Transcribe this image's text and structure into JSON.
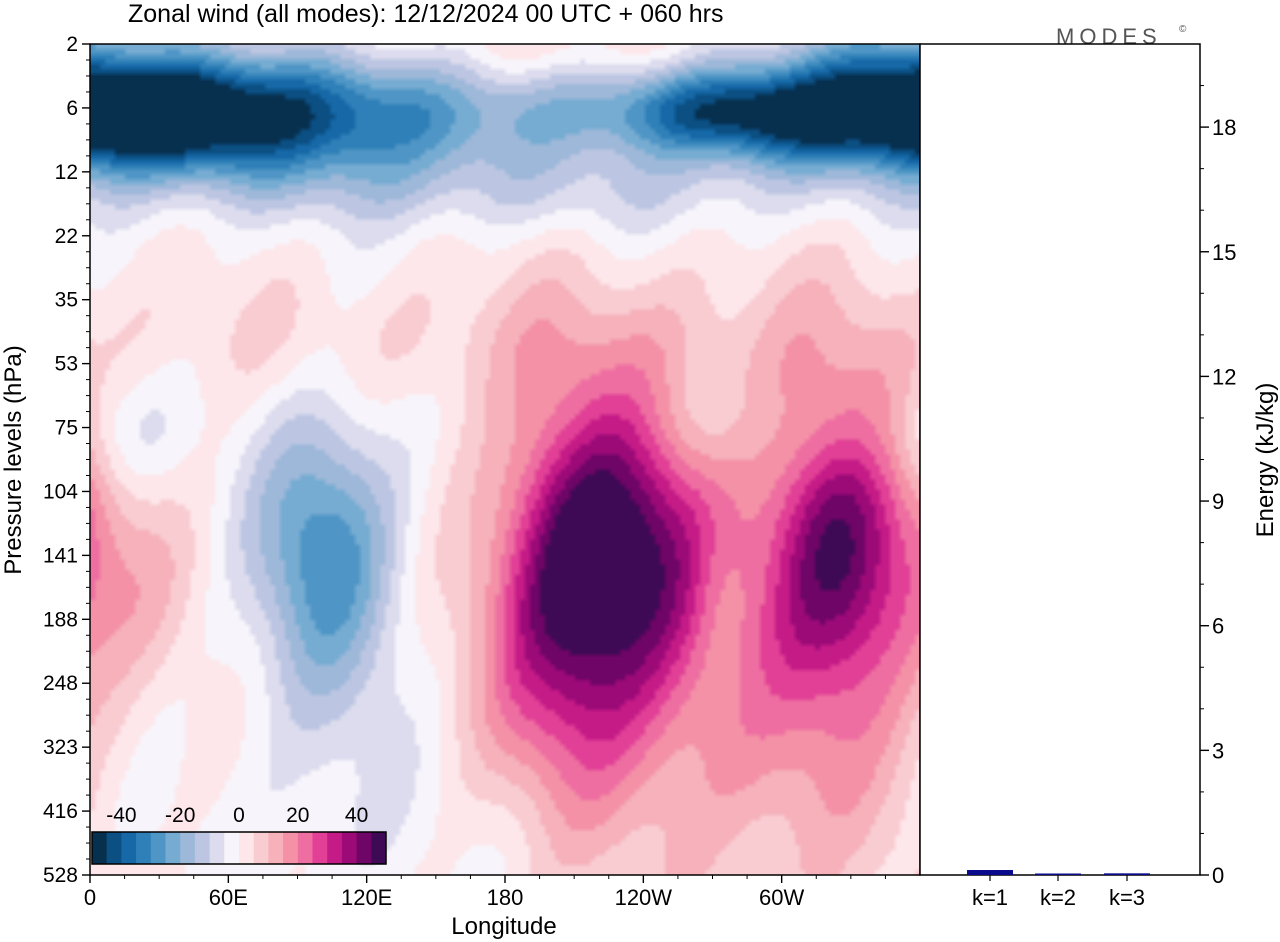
{
  "title": "Zonal wind (all modes):  12/12/2024  00 UTC  + 060 hrs",
  "brand": "MODES",
  "brand_mark": "©",
  "chart_data": [
    {
      "type": "heatmap",
      "name": "zonal-wind-cross-section",
      "xlabel": "Longitude",
      "ylabel": "Pressure levels (hPa)",
      "x_ticks": [
        {
          "lon": 0,
          "label": "0"
        },
        {
          "lon": 60,
          "label": "60E"
        },
        {
          "lon": 120,
          "label": "120E"
        },
        {
          "lon": 180,
          "label": "180"
        },
        {
          "lon": 240,
          "label": "120W"
        },
        {
          "lon": 300,
          "label": "60W"
        }
      ],
      "xlim": [
        0,
        360
      ],
      "y_ticks": [
        "2",
        "6",
        "12",
        "22",
        "35",
        "53",
        "75",
        "104",
        "141",
        "188",
        "248",
        "323",
        "416",
        "528"
      ],
      "y_scale": "categorical-levels",
      "colorbar": {
        "labels": [
          "-40",
          "-20",
          "0",
          "20",
          "40"
        ],
        "values": [
          -40,
          -20,
          0,
          20,
          40
        ],
        "levels": [
          -45,
          -40,
          -35,
          -30,
          -25,
          -20,
          -15,
          -10,
          -5,
          0,
          5,
          10,
          15,
          20,
          25,
          30,
          35,
          40,
          45
        ],
        "colors": [
          "#07304f",
          "#0b4f83",
          "#1668a7",
          "#2f80b8",
          "#4f96c6",
          "#76acd2",
          "#9db8d9",
          "#bcc6e2",
          "#dcdcee",
          "#f7f5fb",
          "#fde7ea",
          "#f9ccd2",
          "#f6b1bb",
          "#f491a7",
          "#ee6ea1",
          "#e14096",
          "#c51b87",
          "#9c0a78",
          "#6e0567",
          "#3f0a55"
        ]
      },
      "blobs": [
        {
          "lon": 27,
          "level": 1.0,
          "sx": 30,
          "sy": 0.55,
          "v": -36
        },
        {
          "lon": 80,
          "level": 0.9,
          "sx": 45,
          "sy": 0.6,
          "v": -28
        },
        {
          "lon": 50,
          "level": 1.6,
          "sx": 60,
          "sy": 0.5,
          "v": -15
        },
        {
          "lon": 155,
          "level": 1.1,
          "sx": 45,
          "sy": 0.7,
          "v": -18
        },
        {
          "lon": 190,
          "level": 0.0,
          "sx": 35,
          "sy": 0.5,
          "v": 8
        },
        {
          "lon": 270,
          "level": 1.0,
          "sx": 40,
          "sy": 0.5,
          "v": -28
        },
        {
          "lon": 320,
          "level": 1.1,
          "sx": 45,
          "sy": 0.55,
          "v": -34
        },
        {
          "lon": 350,
          "level": 0.3,
          "sx": 30,
          "sy": 0.6,
          "v": -20
        },
        {
          "lon": 180,
          "level": 2.3,
          "sx": 160,
          "sy": 0.5,
          "v": -8
        },
        {
          "lon": 100,
          "level": 7.8,
          "sx": 20,
          "sy": 1.4,
          "v": -22
        },
        {
          "lon": 110,
          "level": 9.0,
          "sx": 30,
          "sy": 2.5,
          "v": -10
        },
        {
          "lon": 15,
          "level": 6.0,
          "sx": 15,
          "sy": 0.7,
          "v": -7
        },
        {
          "lon": 5,
          "level": 8.3,
          "sx": 30,
          "sy": 1.2,
          "v": 10
        },
        {
          "lon": 205,
          "level": 8.5,
          "sx": 22,
          "sy": 2.0,
          "v": 26
        },
        {
          "lon": 235,
          "level": 8.0,
          "sx": 25,
          "sy": 1.6,
          "v": 34
        },
        {
          "lon": 325,
          "level": 7.8,
          "sx": 22,
          "sy": 1.7,
          "v": 33
        },
        {
          "lon": 220,
          "level": 9.5,
          "sx": 55,
          "sy": 3.0,
          "v": 12
        },
        {
          "lon": 318,
          "level": 10.0,
          "sx": 35,
          "sy": 3.5,
          "v": 10
        },
        {
          "lon": 185,
          "level": 4.6,
          "sx": 180,
          "sy": 0.8,
          "v": 6
        },
        {
          "lon": 270,
          "level": 6.0,
          "sx": 18,
          "sy": 0.6,
          "v": -4
        },
        {
          "lon": 272,
          "level": 8.6,
          "sx": 8,
          "sy": 0.8,
          "v": -4
        },
        {
          "lon": 340,
          "level": 6.2,
          "sx": 22,
          "sy": 0.6,
          "v": -4
        },
        {
          "lon": 265,
          "level": 11.5,
          "sx": 40,
          "sy": 1.5,
          "v": 5
        },
        {
          "lon": 180,
          "level": 12.5,
          "sx": 80,
          "sy": 1.0,
          "v": -3
        }
      ]
    },
    {
      "type": "bar",
      "name": "mode-energy",
      "ylabel": "Energy (kJ/kg)",
      "categories": [
        "k=1",
        "k=2",
        "k=3"
      ],
      "values": [
        0.12,
        0.03,
        0.04
      ],
      "ylim": [
        0,
        20
      ],
      "y_ticks": [
        {
          "v": 0,
          "label": "0"
        },
        {
          "v": 3,
          "label": "3"
        },
        {
          "v": 6,
          "label": "6"
        },
        {
          "v": 9,
          "label": "9"
        },
        {
          "v": 12,
          "label": "12"
        },
        {
          "v": 15,
          "label": "15"
        },
        {
          "v": 18,
          "label": "18"
        }
      ],
      "bar_color": "#0a0a8c"
    }
  ]
}
